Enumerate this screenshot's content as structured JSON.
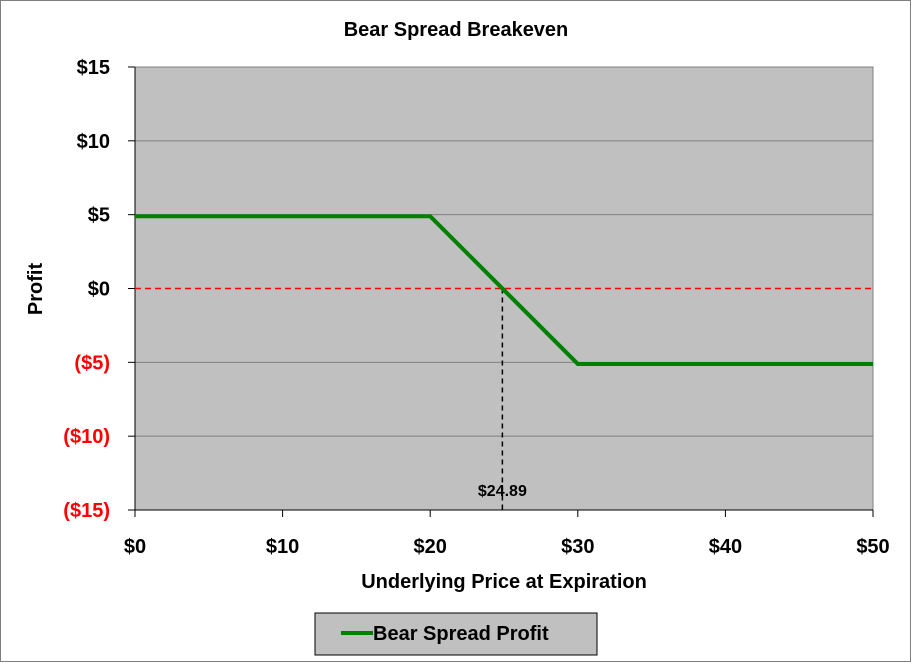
{
  "chart_data": {
    "type": "line",
    "title": "Bear Spread Breakeven",
    "xlabel": "Underlying Price at Expiration",
    "ylabel": "Profit",
    "xlim": [
      0,
      50
    ],
    "ylim": [
      -15,
      15
    ],
    "x_ticks": [
      0,
      10,
      20,
      30,
      40,
      50
    ],
    "x_tick_labels": [
      "$0",
      "$10",
      "$20",
      "$30",
      "$40",
      "$50"
    ],
    "y_ticks": [
      15,
      10,
      5,
      0,
      -5,
      -10,
      -15
    ],
    "y_tick_labels": [
      "$15",
      "$10",
      "$5",
      "$0",
      "($5)",
      "($10)",
      "($15)"
    ],
    "grid": "horizontal",
    "plot_background": "#c0c0c0",
    "series": [
      {
        "name": "Bear Spread Profit",
        "color": "#008000",
        "x": [
          0,
          20,
          30,
          50
        ],
        "y": [
          4.89,
          4.89,
          -5.11,
          -5.11
        ]
      }
    ],
    "zero_line": {
      "y": 0,
      "color": "#ff0000",
      "style": "dashed"
    },
    "breakeven": {
      "x": 24.89,
      "label": "$24.89",
      "style": "dashed",
      "color": "#000000"
    },
    "negative_label_color": "#ff0000",
    "legend": {
      "placement": "bottom",
      "entries": [
        "Bear Spread Profit"
      ]
    }
  }
}
